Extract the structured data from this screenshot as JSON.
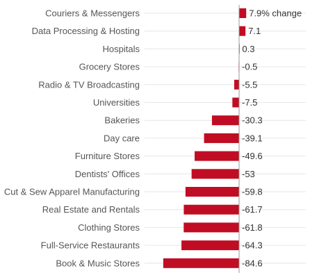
{
  "chart_data": {
    "type": "bar",
    "orientation": "horizontal",
    "categories": [
      "Couriers & Messengers",
      "Data Processing & Hosting",
      "Hospitals",
      "Grocery Stores",
      "Radio & TV Broadcasting",
      "Universities",
      "Bakeries",
      "Day care",
      "Furniture Stores",
      "Dentists' Offices",
      "Cut & Sew Apparel Manufacturing",
      "Real Estate and Rentals",
      "Clothing Stores",
      "Full-Service Restaurants",
      "Book & Music Stores"
    ],
    "values": [
      7.9,
      7.1,
      0.3,
      -0.5,
      -5.5,
      -7.5,
      -30.3,
      -39.1,
      -49.6,
      -53,
      -59.8,
      -61.7,
      -61.8,
      -64.3,
      -84.6
    ],
    "value_labels": [
      "7.9% change",
      "7.1",
      "0.3",
      "-0.5",
      "-5.5",
      "-7.5",
      "-30.3",
      "-39.1",
      "-49.6",
      "-53",
      "-59.8",
      "-61.7",
      "-61.8",
      "-64.3",
      "-84.6"
    ],
    "title": "",
    "xlabel": "",
    "ylabel": "",
    "xlim": [
      -84.6,
      7.9
    ],
    "grid": true,
    "bar_color": "#c00d23"
  }
}
